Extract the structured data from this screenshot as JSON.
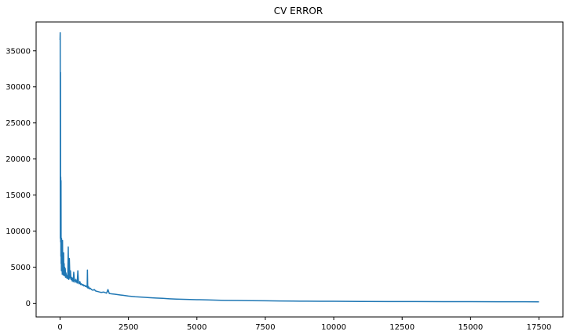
{
  "chart_data": {
    "type": "line",
    "title": "CV ERROR",
    "xlabel": "",
    "ylabel": "",
    "xlim": [
      -875,
      18375
    ],
    "ylim": [
      -1900,
      39000
    ],
    "grid": false,
    "legend": "none",
    "line_color": "#1f77b4",
    "x_ticks": [
      0,
      2500,
      5000,
      7500,
      10000,
      12500,
      15000,
      17500
    ],
    "x_tick_labels": [
      "0",
      "2500",
      "5000",
      "7500",
      "10000",
      "12500",
      "15000",
      "17500"
    ],
    "y_ticks": [
      0,
      5000,
      10000,
      15000,
      20000,
      25000,
      30000,
      35000
    ],
    "y_tick_labels": [
      "0",
      "5000",
      "10000",
      "15000",
      "20000",
      "25000",
      "30000",
      "35000"
    ],
    "series": [
      {
        "x": [
          0,
          5,
          10,
          15,
          20,
          25,
          30,
          35,
          40,
          45,
          50,
          55,
          60,
          70,
          80,
          90,
          100,
          110,
          120,
          130,
          140,
          150,
          160,
          170,
          180,
          190,
          200,
          215,
          230,
          245,
          260,
          280,
          300,
          310,
          320,
          330,
          340,
          360,
          380,
          400,
          420,
          440,
          460,
          480,
          500,
          525,
          550,
          575,
          600,
          625,
          650,
          675,
          700,
          725,
          750,
          780,
          810,
          840,
          870,
          900,
          930,
          960,
          990,
          1000,
          1010,
          1020,
          1040,
          1070,
          1100,
          1150,
          1200,
          1250,
          1300,
          1400,
          1500,
          1600,
          1700,
          1750,
          1800,
          1900,
          2000,
          2100,
          2200,
          2300,
          2400,
          2500,
          2750,
          3000,
          3250,
          3500,
          3750,
          4000,
          4250,
          4500,
          4750,
          5000,
          5500,
          6000,
          6500,
          7000,
          7500,
          8000,
          8500,
          9000,
          9500,
          10000,
          11000,
          12000,
          13000,
          14000,
          15000,
          16000,
          17000,
          17500
        ],
        "y": [
          36500,
          37500,
          9000,
          32000,
          8500,
          17500,
          6500,
          17000,
          5500,
          8000,
          4500,
          9000,
          5200,
          7800,
          4000,
          8700,
          4500,
          6500,
          3900,
          7000,
          4200,
          5500,
          3800,
          5000,
          4100,
          4800,
          3600,
          4200,
          3900,
          3500,
          3800,
          3400,
          7800,
          3600,
          3300,
          3700,
          6200,
          3500,
          4500,
          3300,
          3600,
          3100,
          3500,
          3000,
          4300,
          3100,
          2900,
          3300,
          3000,
          2800,
          4500,
          2800,
          2700,
          3000,
          2600,
          2700,
          2500,
          2600,
          2400,
          2500,
          2300,
          2400,
          2200,
          4600,
          2300,
          2100,
          2300,
          2000,
          2100,
          1900,
          1800,
          1900,
          1700,
          1600,
          1500,
          1550,
          1400,
          1900,
          1350,
          1300,
          1250,
          1200,
          1150,
          1100,
          1050,
          1000,
          900,
          850,
          780,
          720,
          680,
          620,
          580,
          550,
          520,
          500,
          450,
          400,
          380,
          360,
          340,
          320,
          300,
          290,
          280,
          270,
          250,
          240,
          230,
          220,
          215,
          210,
          205,
          200
        ]
      }
    ]
  }
}
